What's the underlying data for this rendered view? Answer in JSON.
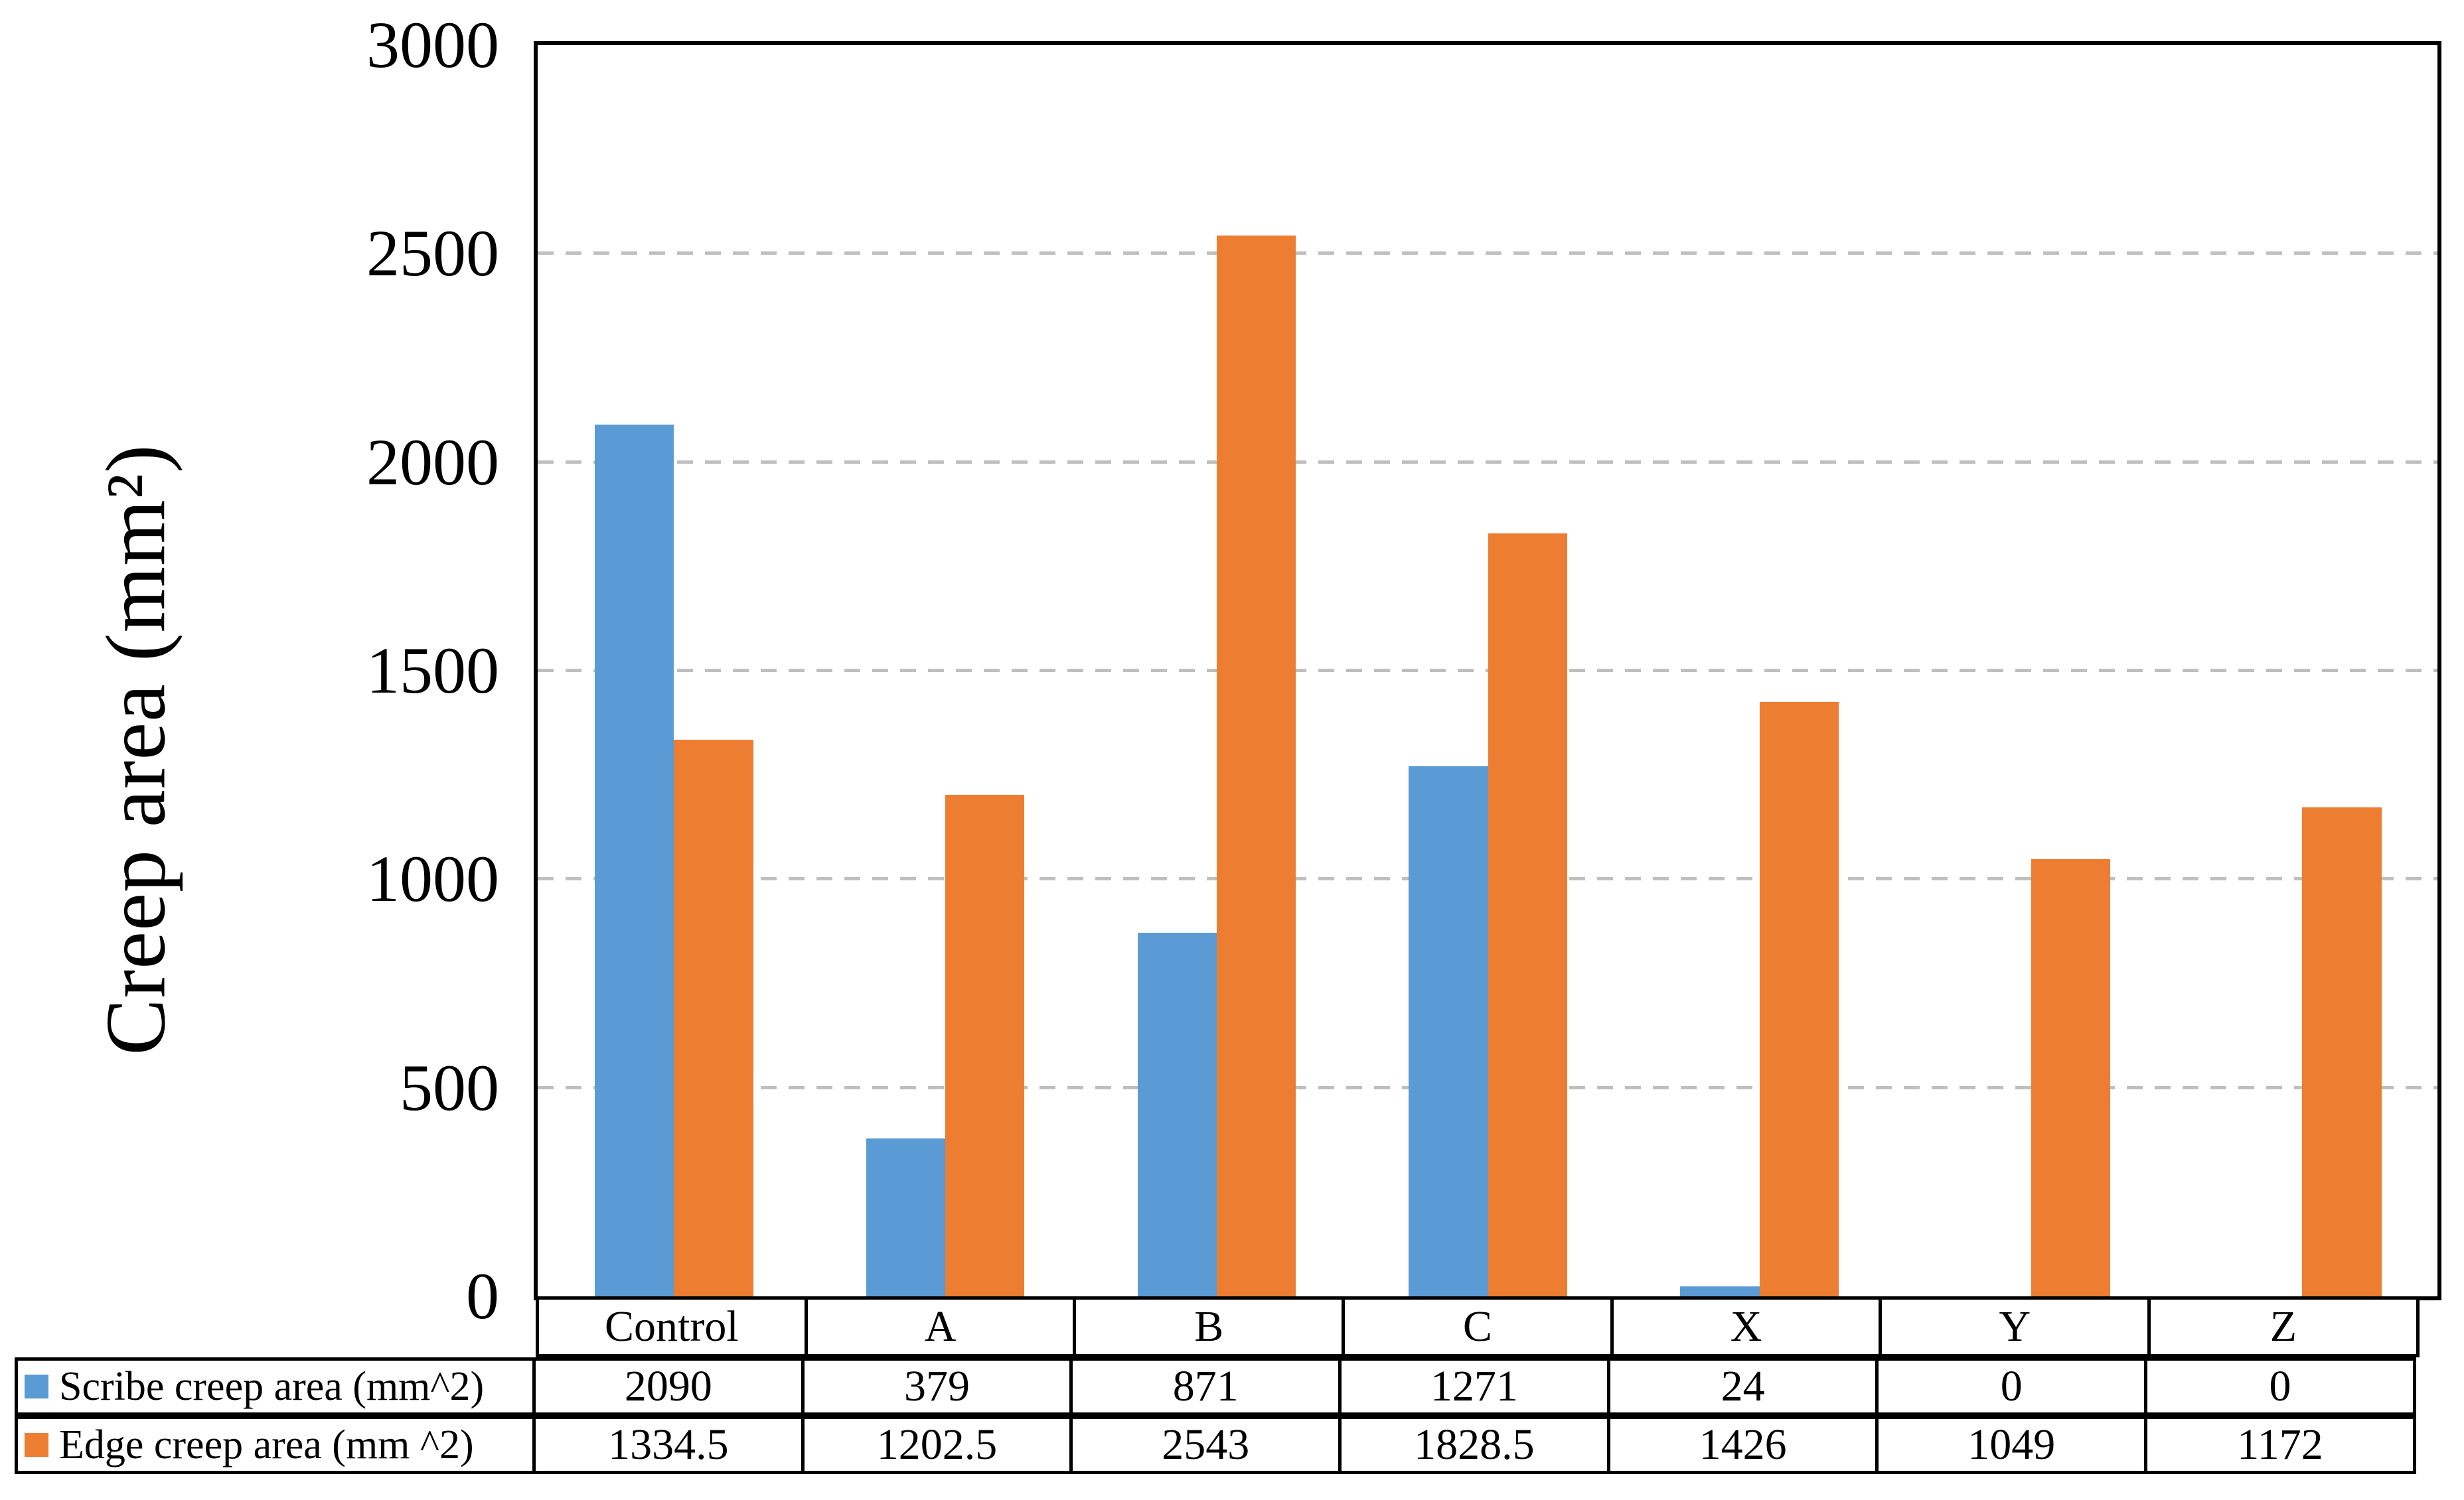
{
  "chart_data": {
    "type": "bar",
    "title": "",
    "ylabel": "Creep area (mm²)",
    "xlabel": "",
    "ylim": [
      0,
      3000
    ],
    "ytick_step": 500,
    "yticks": [
      "0",
      "500",
      "1000",
      "1500",
      "2000",
      "2500",
      "3000"
    ],
    "grid": "horizontal dashed gray lines at every 500",
    "legend_position": "table-left-column",
    "categories": [
      "Control",
      "A",
      "B",
      "C",
      "X",
      "Y",
      "Z"
    ],
    "series": [
      {
        "name": "Scribe creep area (mm^2)",
        "color": "#5B9BD5",
        "values": [
          2090,
          379,
          871,
          1271,
          24,
          0,
          0
        ],
        "labels": [
          "2090",
          "379",
          "871",
          "1271",
          "24",
          "0",
          "0"
        ]
      },
      {
        "name": "Edge creep area (mm ^2)",
        "color": "#ED7D31",
        "values": [
          1334.5,
          1202.5,
          2543,
          1828.5,
          1426,
          1049,
          1172
        ],
        "labels": [
          "1334.5",
          "1202.5",
          "2543",
          "1828.5",
          "1426",
          "1049",
          "1172"
        ]
      }
    ],
    "colors": {
      "scribe_blue": "#5B9BD5",
      "edge_orange": "#ED7D31",
      "gridline_gray": "#BFBFBF",
      "axis_black": "#000000"
    }
  }
}
